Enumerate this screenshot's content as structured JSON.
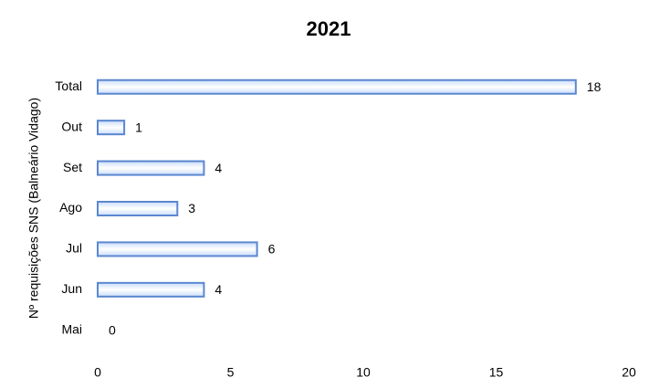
{
  "chart_data": {
    "type": "barh",
    "title": "2021",
    "ylabel": "Nº requisições SNS (Balneário Vidago)",
    "categories": [
      "Total",
      "Out",
      "Set",
      "Ago",
      "Jul",
      "Jun",
      "Mai"
    ],
    "values": [
      18,
      1,
      4,
      3,
      6,
      4,
      0
    ],
    "color": "#c9dcfa",
    "edgecolor": "#5b87d0",
    "xlim": [
      0,
      20
    ],
    "xticks": [
      0,
      5,
      10,
      15,
      20
    ],
    "grid": false
  }
}
